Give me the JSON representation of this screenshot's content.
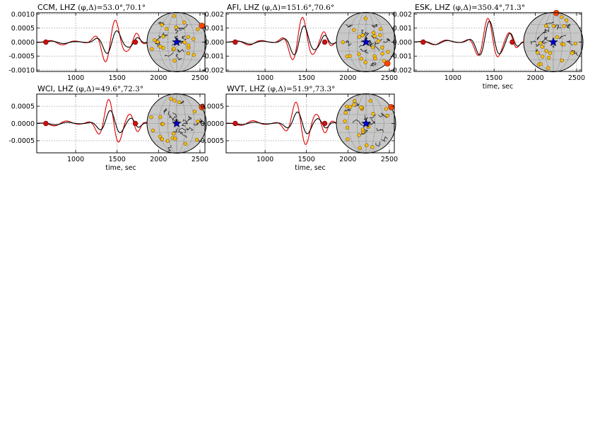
{
  "figure": {
    "page_width_note": "",
    "colors": {
      "observed": "#000000",
      "synthetic": "#dd0000",
      "marker": "#cc1111",
      "grid": "#9a9a9a",
      "globe_fill": "#c8c8c8",
      "station": "#ffc000",
      "highlight_station": "#ff4400",
      "epicenter": "#0000cc"
    }
  },
  "chart_data": [
    {
      "type": "line",
      "station": "CCM",
      "title_prefix": "CCM, LHZ ",
      "title_math": "(φ,Δ)=53.0°,70.1°",
      "xlabel": "",
      "xlim": [
        530,
        2560
      ],
      "ylim": [
        -0.00105,
        0.00105
      ],
      "xticks": [
        1000,
        1500,
        2000,
        2500
      ],
      "xtick_labels": [
        "1000",
        "1500",
        "2000",
        "2500"
      ],
      "yticks": [
        -0.001,
        -0.0005,
        0.0,
        0.0005,
        0.001
      ],
      "ytick_labels": [
        "-0.0010",
        "-0.0005",
        "0.0000",
        "0.0005",
        "0.0010"
      ],
      "window_markers": [
        640,
        1720
      ],
      "cutoff_lines": [
        2140,
        2180,
        2210
      ],
      "amp_obs": 0.00046,
      "amp_syn": 0.00085,
      "highlight_station_pos": "right-upper",
      "series": [
        {
          "name": "",
          "color": "#000000"
        },
        {
          "name": "",
          "color": "#dd0000"
        }
      ]
    },
    {
      "type": "line",
      "station": "AFI",
      "title_prefix": "AFI, LHZ ",
      "title_math": "(φ,Δ)=151.6°,70.6°",
      "xlabel": "",
      "xlim": [
        530,
        2560
      ],
      "ylim": [
        -0.0021,
        0.0021
      ],
      "xticks": [
        1000,
        1500,
        2000,
        2500
      ],
      "xtick_labels": [
        "1000",
        "1500",
        "2000",
        "2500"
      ],
      "yticks": [
        -0.002,
        -0.001,
        0.0,
        0.001,
        0.002
      ],
      "ytick_labels": [
        "-0.002",
        "-0.001",
        "0.000",
        "0.001",
        "0.002"
      ],
      "window_markers": [
        640,
        1720
      ],
      "cutoff_lines": [
        2140,
        2180
      ],
      "amp_obs": 0.0012,
      "amp_syn": 0.0018,
      "highlight_station_pos": "bottom-right",
      "series": [
        {
          "name": "",
          "color": "#000000"
        },
        {
          "name": "",
          "color": "#dd0000"
        }
      ]
    },
    {
      "type": "line",
      "station": "ESK",
      "title_prefix": "ESK, LHZ ",
      "title_math": "(φ,Δ)=350.4°,71.3°",
      "xlabel": "time, sec",
      "xlim": [
        530,
        2560
      ],
      "ylim": [
        -0.0021,
        0.0021
      ],
      "xticks": [
        1000,
        1500,
        2000,
        2500
      ],
      "xtick_labels": [
        "1000",
        "1500",
        "2000",
        "2500"
      ],
      "yticks": [
        -0.002,
        -0.001,
        0.0,
        0.001,
        0.002
      ],
      "ytick_labels": [
        "-0.002",
        "-0.001",
        "0.000",
        "0.001",
        "0.002"
      ],
      "window_markers": [
        640,
        1720
      ],
      "cutoff_lines": [
        2140,
        2180,
        2210
      ],
      "amp_obs": 0.0015,
      "amp_syn": 0.0017,
      "highlight_station_pos": "top",
      "series": [
        {
          "name": "",
          "color": "#000000"
        },
        {
          "name": "",
          "color": "#dd0000"
        }
      ]
    },
    {
      "type": "line",
      "station": "WCI",
      "title_prefix": "WCI, LHZ ",
      "title_math": "(φ,Δ)=49.6°,72.3°",
      "xlabel": "time, sec",
      "xlim": [
        530,
        2560
      ],
      "ylim": [
        -0.00085,
        0.00085
      ],
      "xticks": [
        1000,
        1500,
        2000,
        2500
      ],
      "xtick_labels": [
        "1000",
        "1500",
        "2000",
        "2500"
      ],
      "yticks": [
        -0.0005,
        0.0,
        0.0005
      ],
      "ytick_labels": [
        "-0.0005",
        "0.0000",
        "0.0005"
      ],
      "window_markers": [
        640,
        1720
      ],
      "cutoff_lines": [
        2140,
        2180,
        2210
      ],
      "amp_obs": 0.00038,
      "amp_syn": 0.00072,
      "highlight_station_pos": "right-upper",
      "series": [
        {
          "name": "",
          "color": "#000000"
        },
        {
          "name": "",
          "color": "#dd0000"
        }
      ]
    },
    {
      "type": "line",
      "station": "WVT",
      "title_prefix": "WVT, LHZ ",
      "title_math": "(φ,Δ)=51.9°,73.3°",
      "xlabel": "time, sec",
      "xlim": [
        530,
        2560
      ],
      "ylim": [
        -0.00085,
        0.00085
      ],
      "xticks": [
        1000,
        1500,
        2000,
        2500
      ],
      "xtick_labels": [
        "1000",
        "1500",
        "2000",
        "2500"
      ],
      "yticks": [
        -0.0005,
        0.0,
        0.0005
      ],
      "ytick_labels": [
        "-0.0005",
        "0.0000",
        "0.0005"
      ],
      "window_markers": [
        640,
        1720
      ],
      "cutoff_lines": [
        2140,
        2180,
        2210
      ],
      "amp_obs": 0.00036,
      "amp_syn": 0.0007,
      "highlight_station_pos": "right-upper",
      "series": [
        {
          "name": "",
          "color": "#000000"
        },
        {
          "name": "",
          "color": "#dd0000"
        }
      ]
    }
  ]
}
